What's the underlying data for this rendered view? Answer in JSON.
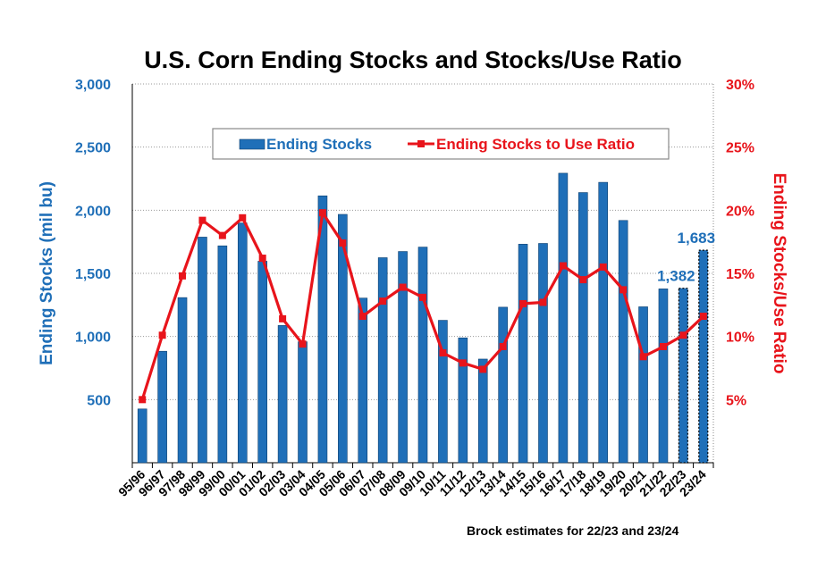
{
  "chart_data": {
    "type": "bar+line",
    "title": "U.S. Corn Ending Stocks and Stocks/Use Ratio",
    "footnote": "Brock estimates for 22/23 and 23/24",
    "categories": [
      "95/96",
      "96/97",
      "97/98",
      "98/99",
      "99/00",
      "00/01",
      "01/02",
      "02/03",
      "03/04",
      "04/05",
      "05/06",
      "06/07",
      "07/08",
      "08/09",
      "09/10",
      "10/11",
      "11/12",
      "12/13",
      "13/14",
      "14/15",
      "15/16",
      "16/17",
      "17/18",
      "18/19",
      "19/20",
      "20/21",
      "21/22",
      "22/23",
      "23/24"
    ],
    "estimated_categories": [
      "22/23",
      "23/24"
    ],
    "y_left": {
      "label": "Ending Stocks (mil bu)",
      "min": 0,
      "max": 3000,
      "ticks": [
        "500",
        "1,000",
        "1,500",
        "2,000",
        "2,500",
        "3,000"
      ],
      "tick_values": [
        500,
        1000,
        1500,
        2000,
        2500,
        3000
      ]
    },
    "y_right": {
      "label": "Ending Stocks/Use Ratio",
      "min": 0,
      "max": 30,
      "ticks": [
        "5%",
        "10%",
        "15%",
        "20%",
        "25%",
        "30%"
      ],
      "tick_values": [
        5,
        10,
        15,
        20,
        25,
        30
      ]
    },
    "series": [
      {
        "name": "Ending Stocks",
        "type": "bar",
        "axis": "left",
        "color": "#1f6fb8",
        "values": [
          426,
          883,
          1308,
          1787,
          1718,
          1899,
          1596,
          1087,
          958,
          2114,
          1967,
          1304,
          1624,
          1673,
          1708,
          1128,
          989,
          821,
          1232,
          1731,
          1737,
          2293,
          2140,
          2221,
          1919,
          1235,
          1377,
          1382,
          1683
        ]
      },
      {
        "name": "Ending Stocks to Use Ratio",
        "type": "line",
        "axis": "right",
        "color": "#e8141b",
        "values": [
          5.0,
          10.1,
          14.8,
          19.2,
          18.0,
          19.4,
          16.2,
          11.4,
          9.4,
          19.8,
          17.4,
          11.6,
          12.8,
          13.9,
          13.1,
          8.7,
          7.9,
          7.4,
          9.2,
          12.6,
          12.7,
          15.6,
          14.5,
          15.5,
          13.7,
          8.4,
          9.2,
          10.1,
          11.6
        ]
      }
    ],
    "data_labels": [
      {
        "category": "22/23",
        "text": "1,382"
      },
      {
        "category": "23/24",
        "text": "1,683"
      }
    ],
    "legend": {
      "position": "top-center"
    },
    "grid": {
      "horizontal": true,
      "style": "dotted"
    },
    "colors": {
      "left_axis": "#1f6fb8",
      "right_axis": "#e8141b"
    }
  }
}
